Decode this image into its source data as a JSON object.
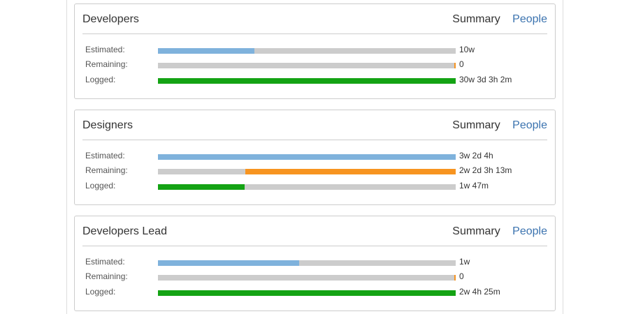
{
  "colors": {
    "estimated": "#7fb2dc",
    "remaining": "#f79420",
    "logged": "#14a314",
    "track": "#cccccc",
    "link": "#3b73af"
  },
  "panels": [
    {
      "title": "Developers",
      "tabs": {
        "summary": "Summary",
        "people": "People"
      },
      "rows": [
        {
          "label": "Estimated:",
          "value": "10w",
          "type": "estimated",
          "fill": [
            0,
            0.325
          ]
        },
        {
          "label": "Remaining:",
          "value": "0",
          "type": "remaining",
          "fill": [
            0.995,
            1.0
          ]
        },
        {
          "label": "Logged:",
          "value": "30w 3d 3h 2m",
          "type": "logged",
          "fill": [
            0,
            1.0
          ]
        }
      ]
    },
    {
      "title": "Designers",
      "tabs": {
        "summary": "Summary",
        "people": "People"
      },
      "rows": [
        {
          "label": "Estimated:",
          "value": "3w 2d 4h",
          "type": "estimated",
          "fill": [
            0,
            1.0
          ]
        },
        {
          "label": "Remaining:",
          "value": "2w 2d 3h 13m",
          "type": "remaining",
          "fill": [
            0.293,
            1.0
          ]
        },
        {
          "label": "Logged:",
          "value": "1w 47m",
          "type": "logged",
          "fill": [
            0,
            0.29
          ]
        }
      ]
    },
    {
      "title": "Developers Lead",
      "tabs": {
        "summary": "Summary",
        "people": "People"
      },
      "rows": [
        {
          "label": "Estimated:",
          "value": "1w",
          "type": "estimated",
          "fill": [
            0,
            0.474
          ]
        },
        {
          "label": "Remaining:",
          "value": "0",
          "type": "remaining",
          "fill": [
            0.995,
            1.0
          ]
        },
        {
          "label": "Logged:",
          "value": "2w 4h 25m",
          "type": "logged",
          "fill": [
            0,
            1.0
          ]
        }
      ]
    }
  ]
}
